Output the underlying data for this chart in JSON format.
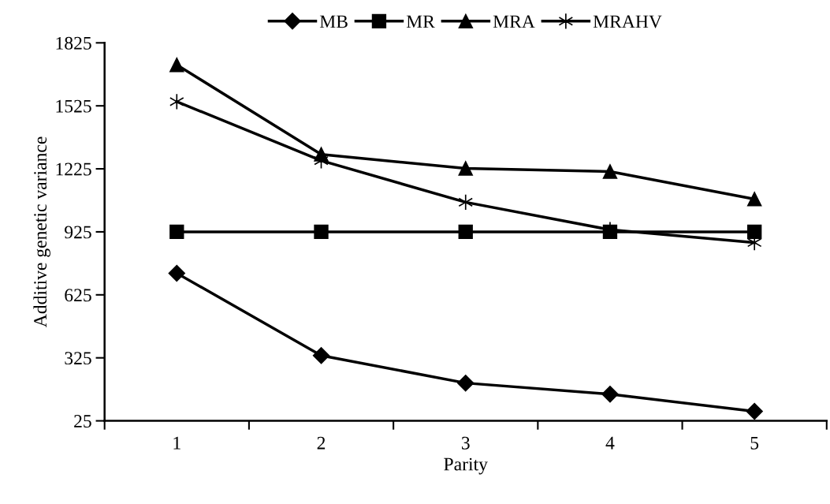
{
  "chart_data": {
    "type": "line",
    "xlabel": "Parity",
    "ylabel": "Additive genetic variance",
    "categories": [
      "1",
      "2",
      "3",
      "4",
      "5"
    ],
    "series": [
      {
        "name": "MB",
        "color": "#000000",
        "marker": "diamond",
        "values": [
          728,
          336,
          205,
          152,
          70
        ]
      },
      {
        "name": "MR",
        "color": "#000000",
        "marker": "square",
        "values": [
          925,
          925,
          925,
          925,
          925
        ]
      },
      {
        "name": "MRA",
        "color": "#000000",
        "marker": "triangle",
        "values": [
          1720,
          1294,
          1227,
          1212,
          1081
        ]
      },
      {
        "name": "MRAHV",
        "color": "#000000",
        "marker": "cross",
        "values": [
          1545,
          1264,
          1066,
          935,
          874
        ]
      }
    ],
    "ylim": [
      25,
      1825
    ],
    "yticks": [
      25,
      325,
      625,
      925,
      1225,
      1525,
      1825
    ],
    "grid": false,
    "legend": "top",
    "line_style": "solid"
  }
}
